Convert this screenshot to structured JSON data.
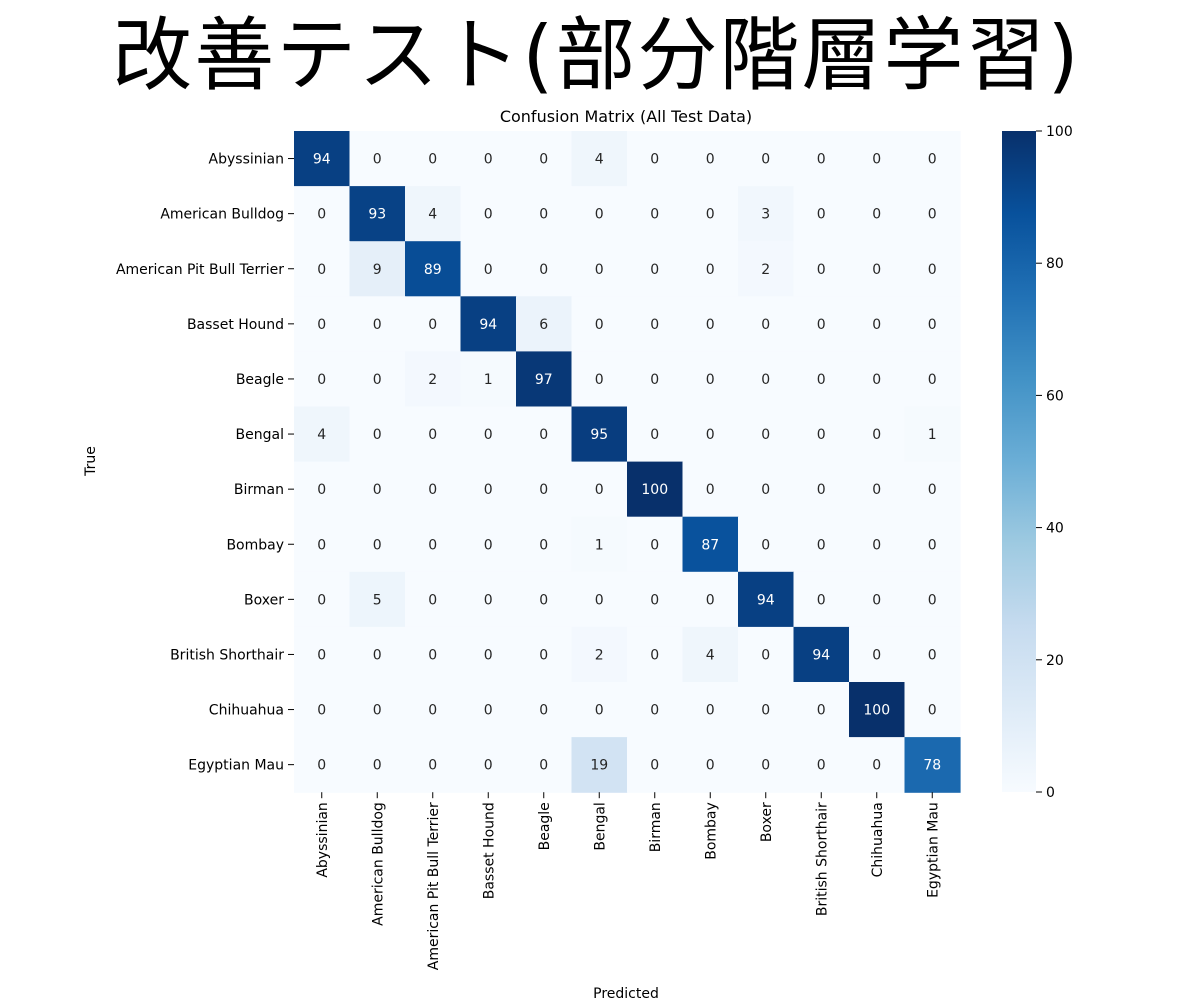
{
  "slide": {
    "title": "改善テスト(部分階層学習)"
  },
  "chart_data": {
    "type": "heatmap",
    "title": "Confusion Matrix (All Test Data)",
    "xlabel": "Predicted",
    "ylabel": "True",
    "labels": [
      "Abyssinian",
      "American Bulldog",
      "American Pit Bull Terrier",
      "Basset Hound",
      "Beagle",
      "Bengal",
      "Birman",
      "Bombay",
      "Boxer",
      "British Shorthair",
      "Chihuahua",
      "Egyptian Mau"
    ],
    "matrix": [
      [
        94,
        0,
        0,
        0,
        0,
        4,
        0,
        0,
        0,
        0,
        0,
        0
      ],
      [
        0,
        93,
        4,
        0,
        0,
        0,
        0,
        0,
        3,
        0,
        0,
        0
      ],
      [
        0,
        9,
        89,
        0,
        0,
        0,
        0,
        0,
        2,
        0,
        0,
        0
      ],
      [
        0,
        0,
        0,
        94,
        6,
        0,
        0,
        0,
        0,
        0,
        0,
        0
      ],
      [
        0,
        0,
        2,
        1,
        97,
        0,
        0,
        0,
        0,
        0,
        0,
        0
      ],
      [
        4,
        0,
        0,
        0,
        0,
        95,
        0,
        0,
        0,
        0,
        0,
        1
      ],
      [
        0,
        0,
        0,
        0,
        0,
        0,
        100,
        0,
        0,
        0,
        0,
        0
      ],
      [
        0,
        0,
        0,
        0,
        0,
        1,
        0,
        87,
        0,
        0,
        0,
        0
      ],
      [
        0,
        5,
        0,
        0,
        0,
        0,
        0,
        0,
        94,
        0,
        0,
        0
      ],
      [
        0,
        0,
        0,
        0,
        0,
        2,
        0,
        4,
        0,
        94,
        0,
        0
      ],
      [
        0,
        0,
        0,
        0,
        0,
        0,
        0,
        0,
        0,
        0,
        100,
        0
      ],
      [
        0,
        0,
        0,
        0,
        0,
        19,
        0,
        0,
        0,
        0,
        0,
        78
      ]
    ],
    "colorbar": {
      "range": [
        0,
        100
      ],
      "ticks": [
        0,
        20,
        40,
        60,
        80,
        100
      ],
      "colormap": "Blues"
    }
  }
}
